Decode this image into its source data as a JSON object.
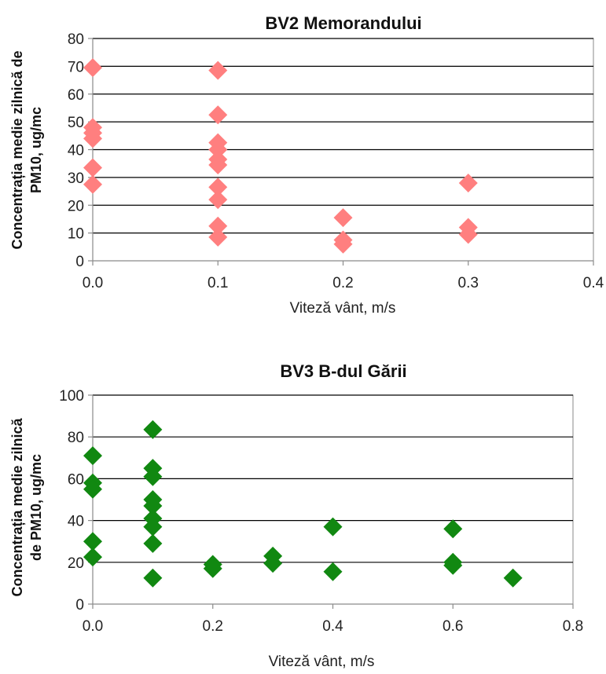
{
  "chart_data": [
    {
      "type": "scatter",
      "title": "BV2 Memorandului",
      "xlabel": "Viteză vânt, m/s",
      "ylabel": [
        "Concentrația medie zilnică de",
        "PM10, ug/mc"
      ],
      "xlim": [
        0,
        0.4
      ],
      "ylim": [
        0,
        80
      ],
      "xticks": [
        "0.0",
        "0.1",
        "0.2",
        "0.3",
        "0.4"
      ],
      "yticks": [
        "0",
        "10",
        "20",
        "30",
        "40",
        "50",
        "60",
        "70",
        "80"
      ],
      "grid": true,
      "marker": "diamond",
      "color": "#ff7f7f",
      "points": [
        [
          0,
          69.5
        ],
        [
          0,
          48
        ],
        [
          0,
          46
        ],
        [
          0,
          44
        ],
        [
          0,
          33.5
        ],
        [
          0,
          27.5
        ],
        [
          0.1,
          68.5
        ],
        [
          0.1,
          52.5
        ],
        [
          0.1,
          42.5
        ],
        [
          0.1,
          40
        ],
        [
          0.1,
          36.5
        ],
        [
          0.1,
          34.5
        ],
        [
          0.1,
          26.5
        ],
        [
          0.1,
          22
        ],
        [
          0.1,
          12.5
        ],
        [
          0.1,
          8.5
        ],
        [
          0.2,
          15.5
        ],
        [
          0.2,
          7.5
        ],
        [
          0.2,
          6
        ],
        [
          0.3,
          28
        ],
        [
          0.3,
          12
        ],
        [
          0.3,
          9.5
        ]
      ]
    },
    {
      "type": "scatter",
      "title": "BV3 B-dul Gării",
      "xlabel": "Viteză vânt, m/s",
      "ylabel": [
        "Concentrația medie zilnică",
        "de PM10, ug/mc"
      ],
      "xlim": [
        0,
        0.8
      ],
      "ylim": [
        0,
        100
      ],
      "xticks": [
        "0.0",
        "0.2",
        "0.4",
        "0.6",
        "0.8"
      ],
      "yticks": [
        "0",
        "20",
        "40",
        "60",
        "80",
        "100"
      ],
      "grid": true,
      "marker": "diamond",
      "color": "#118811",
      "points": [
        [
          0,
          71
        ],
        [
          0,
          58
        ],
        [
          0,
          55
        ],
        [
          0,
          30
        ],
        [
          0,
          22.5
        ],
        [
          0.1,
          83.5
        ],
        [
          0.1,
          65
        ],
        [
          0.1,
          61
        ],
        [
          0.1,
          50
        ],
        [
          0.1,
          47
        ],
        [
          0.1,
          41
        ],
        [
          0.1,
          37
        ],
        [
          0.1,
          29
        ],
        [
          0.1,
          12.5
        ],
        [
          0.2,
          19
        ],
        [
          0.2,
          17
        ],
        [
          0.3,
          23
        ],
        [
          0.3,
          19.5
        ],
        [
          0.4,
          37
        ],
        [
          0.4,
          15.5
        ],
        [
          0.6,
          36
        ],
        [
          0.6,
          20
        ],
        [
          0.6,
          18.5
        ],
        [
          0.7,
          12.5
        ]
      ]
    }
  ]
}
